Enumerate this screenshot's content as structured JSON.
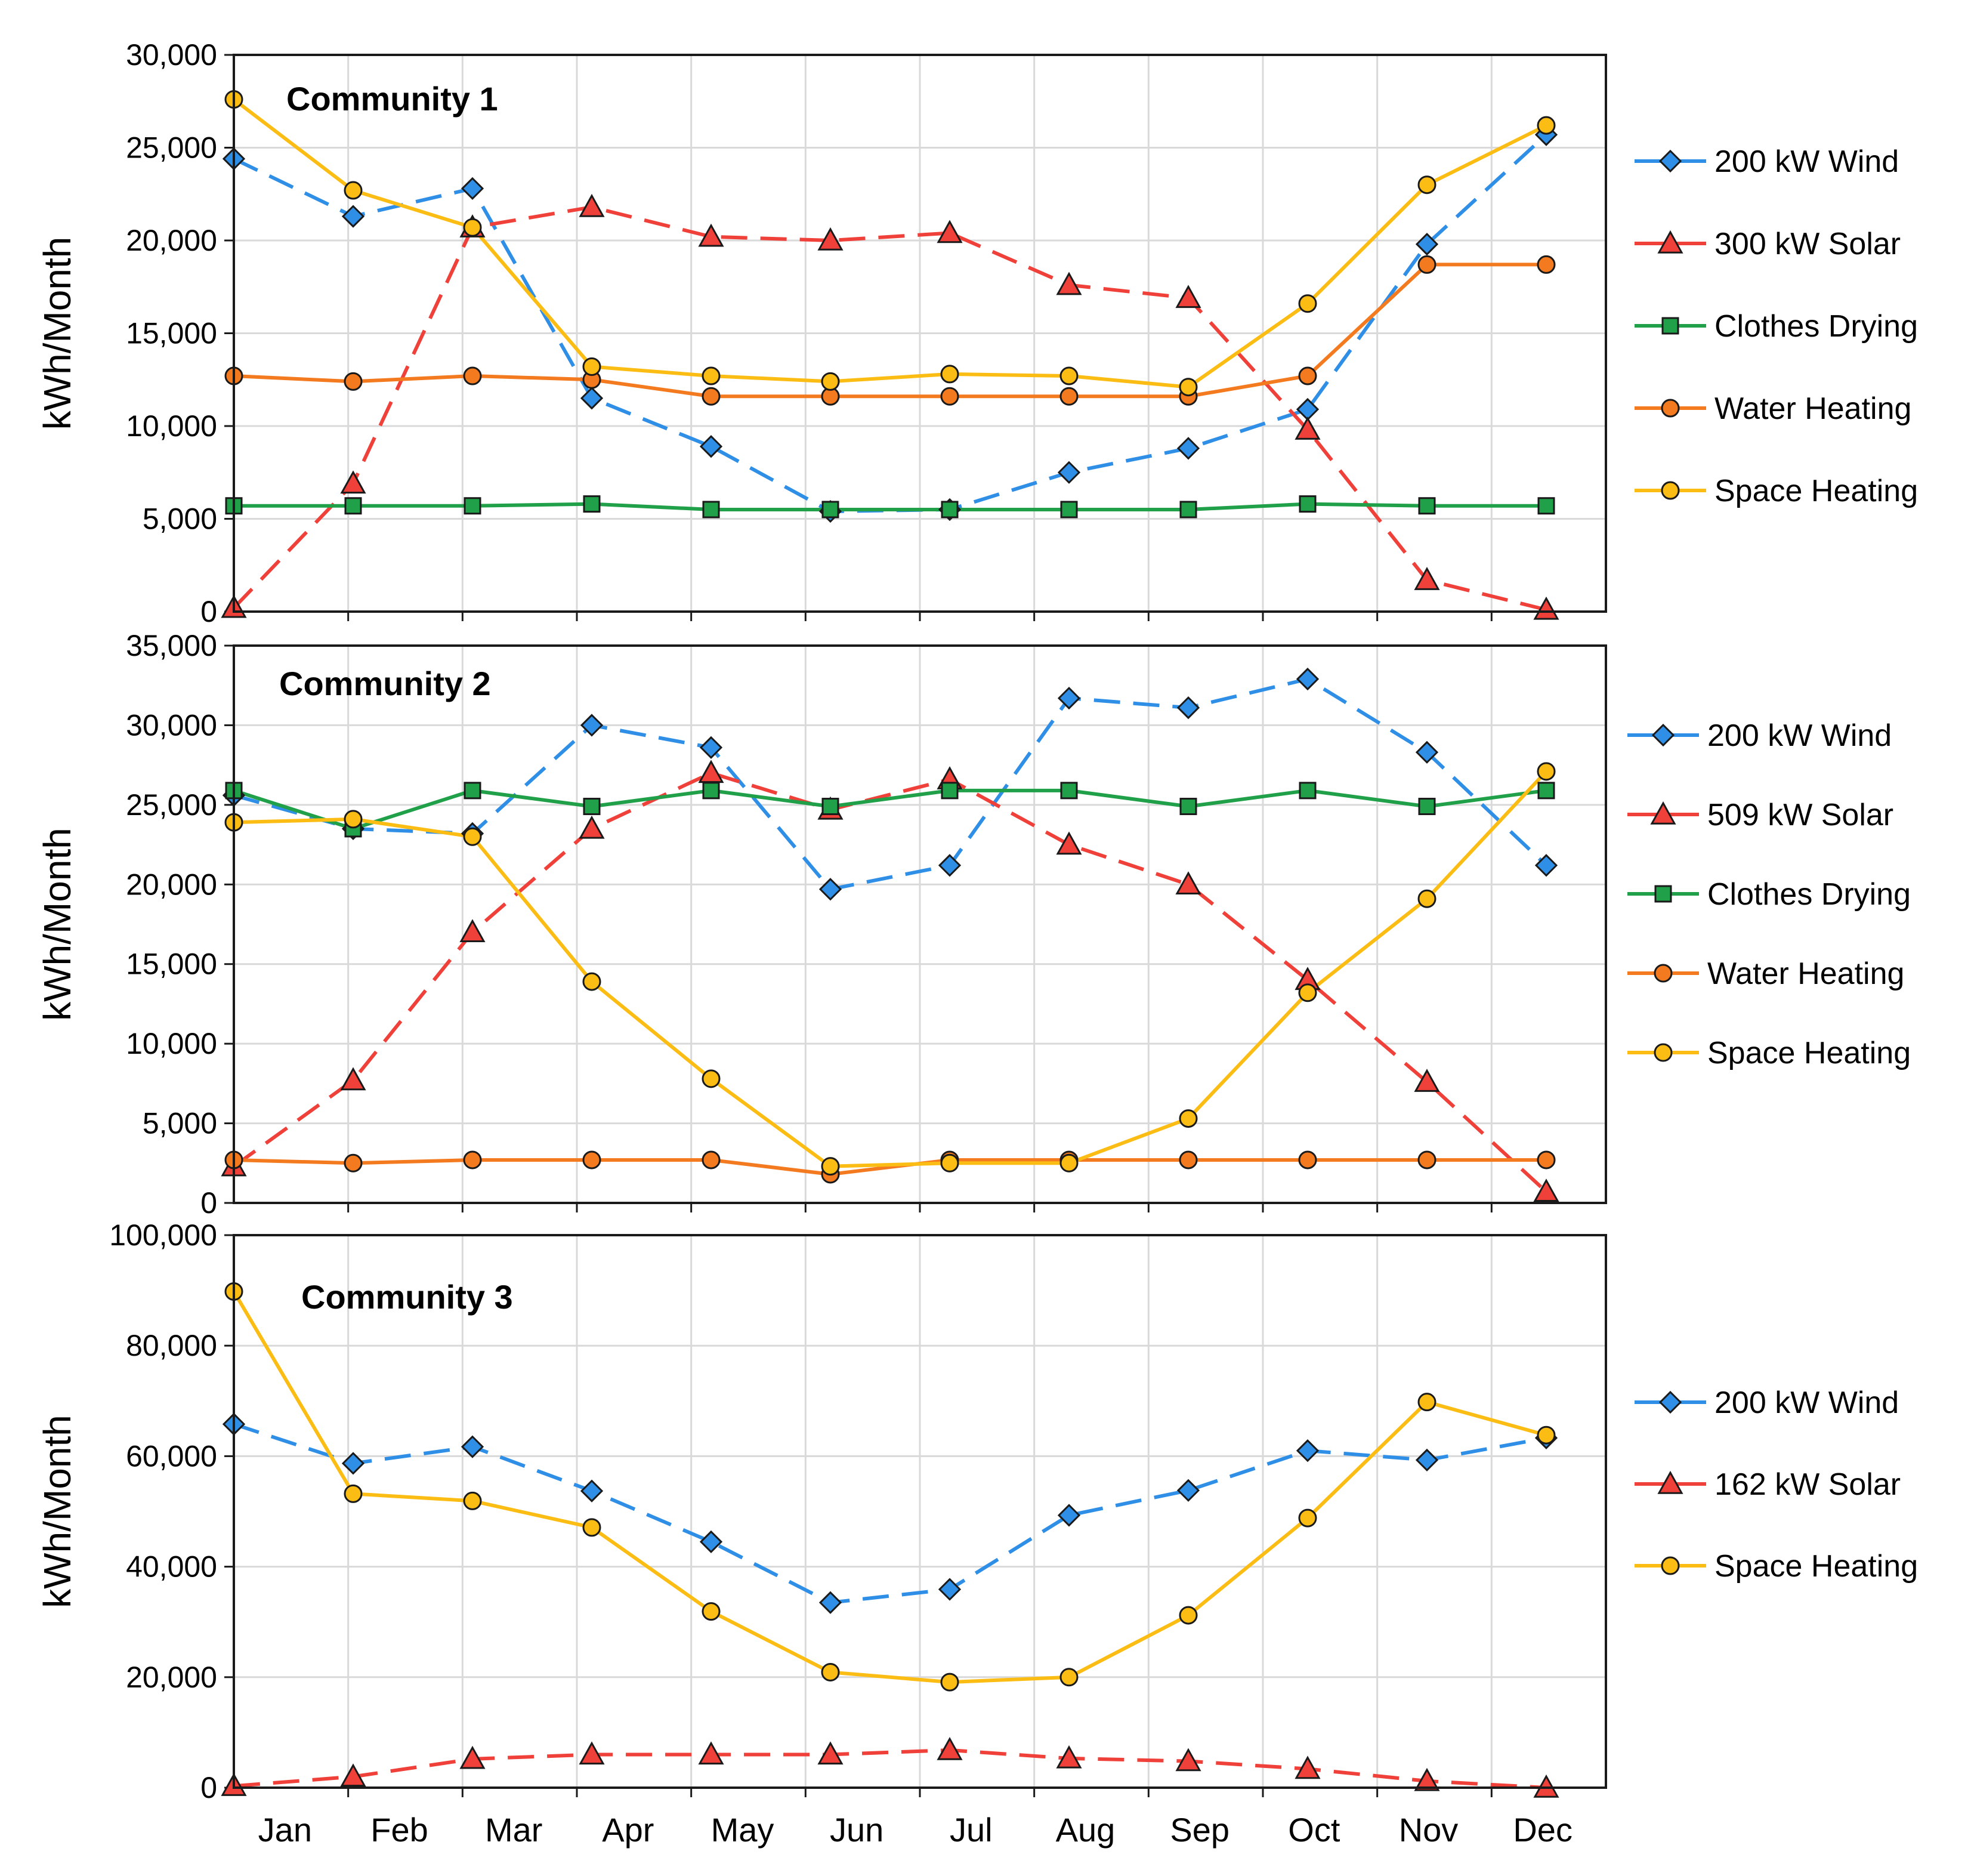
{
  "chart_data": [
    {
      "type": "line",
      "title": "Community 1",
      "xlabel": "",
      "ylabel": "kWh/Month",
      "ylim": [
        0,
        30000
      ],
      "ytick_labels": [
        "0",
        "5,000",
        "10,000",
        "15,000",
        "20,000",
        "25,000",
        "30,000"
      ],
      "grid": true,
      "legend_position": "right",
      "series": [
        {
          "name": "200 kW Wind",
          "color": "#2f8fe6",
          "dash": true,
          "marker": "diamond",
          "x": [
            0,
            1,
            2,
            3,
            4,
            5,
            6,
            7,
            8,
            9,
            10,
            11
          ],
          "values": [
            24400,
            21300,
            22800,
            11500,
            8900,
            5400,
            5500,
            7500,
            8800,
            10900,
            19800,
            25700
          ]
        },
        {
          "name": "300 kW Solar",
          "color": "#f0403a",
          "dash": true,
          "marker": "triangle",
          "x": [
            0,
            1,
            2,
            3,
            4,
            5,
            6,
            7,
            8,
            9,
            10,
            11
          ],
          "values": [
            200,
            6900,
            20700,
            21800,
            20200,
            20000,
            20400,
            17600,
            16900,
            9800,
            1700,
            100
          ]
        },
        {
          "name": "Clothes Drying",
          "color": "#21a04a",
          "dash": false,
          "marker": "square",
          "x": [
            0,
            1,
            2,
            3,
            4,
            5,
            6,
            7,
            8,
            9,
            10,
            11
          ],
          "values": [
            5700,
            5700,
            5700,
            5800,
            5500,
            5500,
            5500,
            5500,
            5500,
            5800,
            5700,
            5700
          ]
        },
        {
          "name": "Water Heating",
          "color": "#f47a1f",
          "dash": false,
          "marker": "circle",
          "x": [
            0,
            1,
            2,
            3,
            4,
            5,
            6,
            7,
            8,
            9,
            10,
            11
          ],
          "values": [
            12700,
            12400,
            12700,
            12500,
            11600,
            11600,
            11600,
            11600,
            11600,
            12700,
            18700,
            18700
          ]
        },
        {
          "name": "Space Heating",
          "color": "#fbbd14",
          "dash": false,
          "marker": "circle",
          "x": [
            0,
            1,
            2,
            3,
            4,
            5,
            6,
            7,
            8,
            9,
            10,
            11
          ],
          "values": [
            27600,
            22700,
            20700,
            13200,
            12700,
            12400,
            12800,
            12700,
            12100,
            16600,
            23000,
            26200
          ]
        }
      ]
    },
    {
      "type": "line",
      "title": "Community 2",
      "xlabel": "",
      "ylabel": "kWh/Month",
      "ylim": [
        0,
        35000
      ],
      "ytick_labels": [
        "0",
        "5,000",
        "10,000",
        "15,000",
        "20,000",
        "25,000",
        "30,000",
        "35,000"
      ],
      "grid": true,
      "legend_position": "right",
      "series": [
        {
          "name": "200 kW Wind",
          "color": "#2f8fe6",
          "dash": true,
          "marker": "diamond",
          "x": [
            0,
            1,
            2,
            3,
            4,
            5,
            6,
            7,
            8,
            9,
            10,
            11
          ],
          "values": [
            25600,
            23500,
            23200,
            30000,
            28600,
            19700,
            21200,
            31700,
            31100,
            32900,
            28300,
            21200
          ]
        },
        {
          "name": "509 kW Solar",
          "color": "#f0403a",
          "dash": true,
          "marker": "triangle",
          "x": [
            0,
            1,
            2,
            3,
            4,
            5,
            6,
            7,
            8,
            9,
            10,
            11
          ],
          "values": [
            2300,
            7700,
            17000,
            23500,
            27000,
            24700,
            26600,
            22500,
            20000,
            14000,
            7600,
            700
          ]
        },
        {
          "name": "Clothes Drying",
          "color": "#21a04a",
          "dash": false,
          "marker": "square",
          "x": [
            0,
            1,
            2,
            3,
            4,
            5,
            6,
            7,
            8,
            9,
            10,
            11
          ],
          "values": [
            25900,
            23500,
            25900,
            24900,
            25900,
            24900,
            25900,
            25900,
            24900,
            25900,
            24900,
            25900
          ]
        },
        {
          "name": "Water Heating",
          "color": "#f47a1f",
          "dash": false,
          "marker": "circle",
          "x": [
            0,
            1,
            2,
            3,
            4,
            5,
            6,
            7,
            8,
            9,
            10,
            11
          ],
          "values": [
            2700,
            2500,
            2700,
            2700,
            2700,
            1800,
            2700,
            2700,
            2700,
            2700,
            2700,
            2700
          ]
        },
        {
          "name": "Space Heating",
          "color": "#fbbd14",
          "dash": false,
          "marker": "circle",
          "x": [
            0,
            1,
            2,
            3,
            4,
            5,
            6,
            7,
            8,
            9,
            10,
            11
          ],
          "values": [
            23900,
            24100,
            23000,
            13900,
            7800,
            2300,
            2500,
            2500,
            5300,
            13200,
            19100,
            27100
          ]
        }
      ]
    },
    {
      "type": "line",
      "title": "Community 3",
      "xlabel": "",
      "ylabel": "kWh/Month",
      "ylim": [
        0,
        100000
      ],
      "ytick_labels": [
        "0",
        "20,000",
        "40,000",
        "60,000",
        "80,000",
        "100,000"
      ],
      "categories": [
        "Jan",
        "Feb",
        "Mar",
        "Apr",
        "May",
        "Jun",
        "Jul",
        "Aug",
        "Sep",
        "Oct",
        "Nov",
        "Dec"
      ],
      "grid": true,
      "legend_position": "right",
      "series": [
        {
          "name": "200 kW Wind",
          "color": "#2f8fe6",
          "dash": true,
          "marker": "diamond",
          "x": [
            0,
            1,
            2,
            3,
            4,
            5,
            6,
            7,
            8,
            9,
            10,
            11
          ],
          "values": [
            65800,
            58700,
            61700,
            53700,
            44500,
            33500,
            35900,
            49300,
            53800,
            61000,
            59300,
            63300
          ]
        },
        {
          "name": "162 kW Solar",
          "color": "#f0403a",
          "dash": true,
          "marker": "triangle",
          "x": [
            0,
            1,
            2,
            3,
            4,
            5,
            6,
            7,
            8,
            9,
            10,
            11
          ],
          "values": [
            300,
            2000,
            5200,
            6000,
            6000,
            6000,
            6800,
            5300,
            4800,
            3400,
            1200,
            0
          ]
        },
        {
          "name": "Space Heating",
          "color": "#fbbd14",
          "dash": false,
          "marker": "circle",
          "x": [
            0,
            1,
            2,
            3,
            4,
            5,
            6,
            7,
            8,
            9,
            10,
            11
          ],
          "values": [
            89800,
            53200,
            51900,
            47100,
            31900,
            20900,
            19100,
            20000,
            31200,
            48800,
            69800,
            63800
          ]
        }
      ]
    }
  ]
}
